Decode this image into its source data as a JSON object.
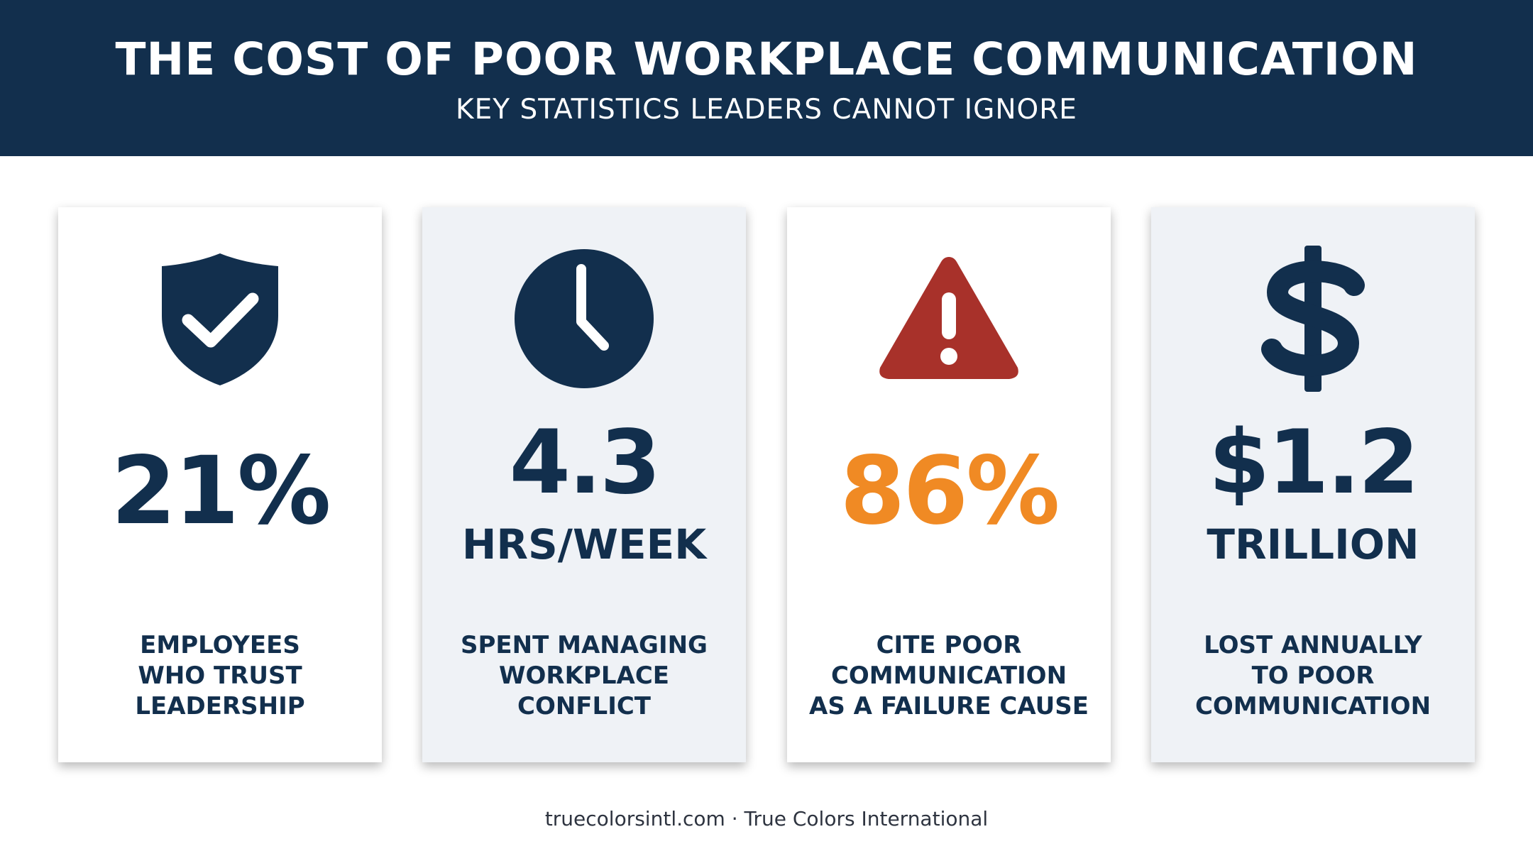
{
  "header": {
    "title": "THE COST OF POOR WORKPLACE COMMUNICATION",
    "subtitle": "KEY STATISTICS LEADERS CANNOT IGNORE"
  },
  "colors": {
    "navy": "#122f4d",
    "orange": "#f08a24",
    "red": "#a8312a"
  },
  "cards": [
    {
      "icon": "shield-check-icon",
      "value": "21%",
      "unit": "",
      "description": [
        "EMPLOYEES",
        "WHO TRUST",
        "LEADERSHIP"
      ]
    },
    {
      "icon": "clock-icon",
      "value": "4.3",
      "unit": "HRS/WEEK",
      "description": [
        "SPENT MANAGING",
        "WORKPLACE",
        "CONFLICT"
      ]
    },
    {
      "icon": "warning-icon",
      "value": "86%",
      "unit": "",
      "description": [
        "CITE POOR",
        "COMMUNICATION",
        "AS A FAILURE CAUSE"
      ]
    },
    {
      "icon": "dollar-icon",
      "value": "$1.2",
      "unit": "TRILLION",
      "description": [
        "LOST ANNUALLY",
        "TO POOR",
        "COMMUNICATION"
      ]
    }
  ],
  "footer": "truecolorsintl.com · True Colors International"
}
